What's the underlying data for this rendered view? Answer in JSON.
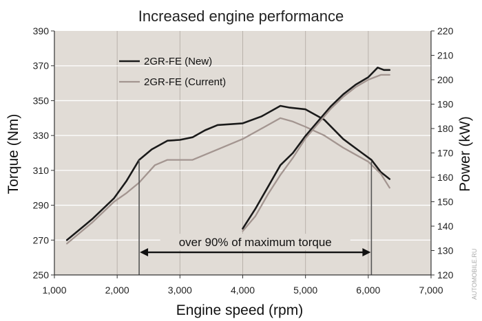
{
  "chart_data": {
    "type": "line",
    "title": "Increased engine performance",
    "xlabel": "Engine speed (rpm)",
    "ylabel_left": "Torque (Nm)",
    "ylabel_right": "Power (kW)",
    "xlim": [
      1000,
      7000
    ],
    "ylim_left": [
      250,
      390
    ],
    "ylim_right": [
      120,
      220
    ],
    "x_ticks": [
      1000,
      2000,
      3000,
      4000,
      5000,
      6000,
      7000
    ],
    "x_tick_labels": [
      "1,000",
      "2,000",
      "3,000",
      "4,000",
      "5,000",
      "6,000",
      "7,000"
    ],
    "y_left_ticks": [
      250,
      270,
      290,
      310,
      330,
      350,
      370,
      390
    ],
    "y_right_ticks": [
      120,
      130,
      140,
      150,
      160,
      170,
      180,
      190,
      200,
      210,
      220
    ],
    "grid": true,
    "legend_position": "top-left",
    "colors": {
      "new": "#1a1a1a",
      "current": "#a39590",
      "plot_bg": "#e1dcd6",
      "grid": "#ffffff"
    },
    "series": [
      {
        "name": "2GR-FE (New)",
        "kind": "torque",
        "axis": "left",
        "color": "#1a1a1a",
        "points": [
          [
            1200,
            270
          ],
          [
            1600,
            282
          ],
          [
            1950,
            294
          ],
          [
            2150,
            304
          ],
          [
            2350,
            316
          ],
          [
            2550,
            322
          ],
          [
            2800,
            327
          ],
          [
            3000,
            327.5
          ],
          [
            3200,
            329
          ],
          [
            3400,
            333
          ],
          [
            3600,
            336
          ],
          [
            4000,
            337
          ],
          [
            4300,
            341
          ],
          [
            4600,
            347
          ],
          [
            4750,
            346
          ],
          [
            5000,
            345
          ],
          [
            5300,
            339
          ],
          [
            5600,
            328
          ],
          [
            5900,
            320
          ],
          [
            6050,
            316
          ],
          [
            6200,
            309
          ],
          [
            6340,
            305
          ]
        ]
      },
      {
        "name": "2GR-FE (Current)",
        "kind": "torque",
        "axis": "left",
        "color": "#a39590",
        "points": [
          [
            1200,
            268
          ],
          [
            1600,
            280
          ],
          [
            1950,
            292
          ],
          [
            2150,
            297
          ],
          [
            2350,
            303
          ],
          [
            2600,
            313
          ],
          [
            2800,
            316
          ],
          [
            3000,
            316
          ],
          [
            3200,
            316
          ],
          [
            3600,
            322
          ],
          [
            4000,
            328
          ],
          [
            4300,
            334
          ],
          [
            4600,
            340
          ],
          [
            4800,
            338
          ],
          [
            5000,
            335
          ],
          [
            5300,
            330
          ],
          [
            5600,
            323
          ],
          [
            6000,
            315
          ],
          [
            6200,
            308
          ],
          [
            6340,
            300
          ]
        ]
      },
      {
        "name": "2GR-FE (New)",
        "kind": "power",
        "axis": "right",
        "color": "#1a1a1a",
        "points": [
          [
            4000,
            139
          ],
          [
            4200,
            147
          ],
          [
            4400,
            156
          ],
          [
            4600,
            165
          ],
          [
            4800,
            170
          ],
          [
            5000,
            177
          ],
          [
            5200,
            183
          ],
          [
            5400,
            189
          ],
          [
            5600,
            194
          ],
          [
            5800,
            198
          ],
          [
            6000,
            201
          ],
          [
            6150,
            205
          ],
          [
            6250,
            204
          ],
          [
            6340,
            204
          ]
        ]
      },
      {
        "name": "2GR-FE (Current)",
        "kind": "power",
        "axis": "right",
        "color": "#a39590",
        "points": [
          [
            4000,
            138
          ],
          [
            4200,
            144
          ],
          [
            4400,
            153
          ],
          [
            4600,
            161
          ],
          [
            4800,
            168
          ],
          [
            5000,
            176
          ],
          [
            5200,
            182
          ],
          [
            5400,
            188
          ],
          [
            5600,
            193
          ],
          [
            5800,
            197
          ],
          [
            6000,
            200
          ],
          [
            6200,
            202
          ],
          [
            6340,
            202
          ]
        ]
      }
    ],
    "annotation": {
      "text": "over 90% of maximum torque",
      "x_start": 2350,
      "x_end": 6050,
      "y_level": 263,
      "bracket_top_left": 316,
      "bracket_top_right": 315,
      "bracket_bottom": 250
    },
    "watermark": "AUTOMOBILE.RU"
  }
}
